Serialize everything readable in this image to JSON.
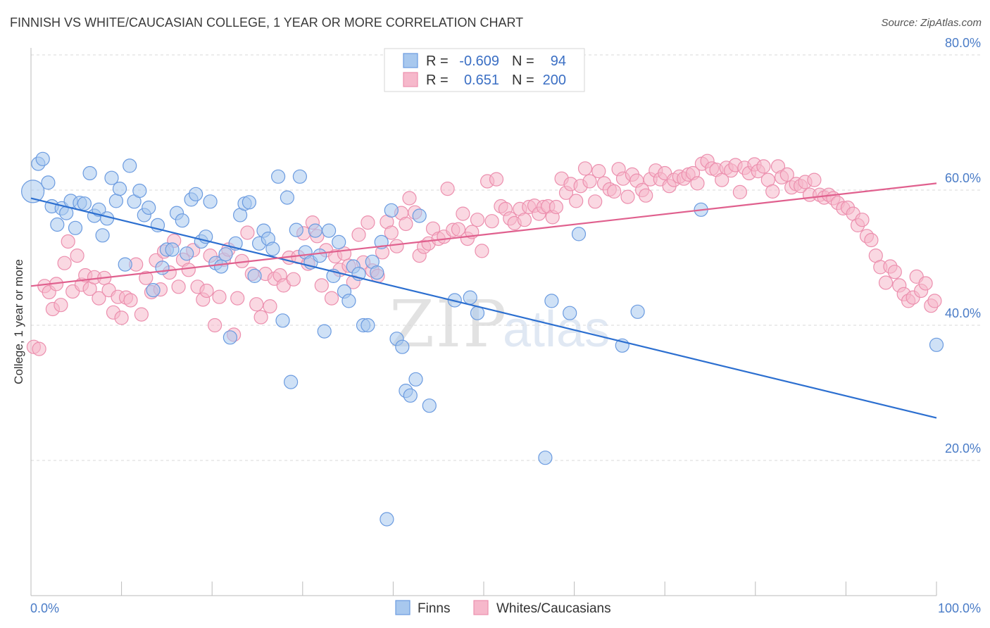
{
  "title": "FINNISH VS WHITE/CAUCASIAN COLLEGE, 1 YEAR OR MORE CORRELATION CHART",
  "source": "Source: ZipAtlas.com",
  "watermark": {
    "zip": "ZIP",
    "atlas": "atlas"
  },
  "colors": {
    "finns_fill": "#a8c8ee",
    "finns_stroke": "#6b9be0",
    "finns_line": "#2c6fd0",
    "whites_fill": "#f6b8cb",
    "whites_stroke": "#ec8fae",
    "whites_line": "#e0608e",
    "grid": "#d8d8d8",
    "tick": "#4a7cc7"
  },
  "legend": {
    "rows": [
      {
        "r_label": "R =",
        "r_value": "-0.609",
        "n_label": "N =",
        "n_value": "94"
      },
      {
        "r_label": "R =",
        "r_value": "0.651",
        "n_label": "N =",
        "n_value": "200"
      }
    ]
  },
  "bottom_legend": {
    "finns": "Finns",
    "whites": "Whites/Caucasians"
  },
  "chart_data": {
    "type": "scatter",
    "xlabel": "",
    "ylabel": "College, 1 year or more",
    "xlim": [
      0,
      100
    ],
    "ylim": [
      0,
      82
    ],
    "x_tick_labels": [
      "0.0%",
      "100.0%"
    ],
    "y_ticks": [
      20,
      40,
      60,
      80
    ],
    "y_tick_labels": [
      "20.0%",
      "40.0%",
      "60.0%",
      "80.0%"
    ],
    "grid": true,
    "legend_position": "top-center",
    "series": [
      {
        "name": "Finns",
        "r": -0.609,
        "n": 94,
        "trend": {
          "x": [
            0,
            100
          ],
          "y": [
            58.8,
            26.3
          ]
        },
        "points": [
          [
            0.2,
            59.8
          ],
          [
            0.8,
            63.9
          ],
          [
            1.3,
            64.6
          ],
          [
            1.9,
            61.1
          ],
          [
            2.3,
            57.6
          ],
          [
            2.9,
            54.9
          ],
          [
            3.4,
            57.3
          ],
          [
            3.9,
            56.6
          ],
          [
            4.4,
            58.4
          ],
          [
            4.9,
            54.4
          ],
          [
            5.4,
            58.1
          ],
          [
            5.9,
            58.0
          ],
          [
            6.5,
            62.5
          ],
          [
            7.0,
            56.2
          ],
          [
            7.5,
            57.1
          ],
          [
            7.9,
            53.3
          ],
          [
            8.4,
            55.8
          ],
          [
            8.9,
            61.8
          ],
          [
            9.4,
            58.4
          ],
          [
            9.8,
            60.2
          ],
          [
            10.4,
            49.0
          ],
          [
            10.9,
            63.6
          ],
          [
            11.4,
            58.3
          ],
          [
            12.0,
            59.9
          ],
          [
            12.5,
            56.3
          ],
          [
            13.0,
            57.4
          ],
          [
            13.5,
            45.2
          ],
          [
            14.0,
            54.8
          ],
          [
            14.5,
            48.5
          ],
          [
            15.0,
            51.2
          ],
          [
            15.6,
            51.2
          ],
          [
            16.1,
            56.6
          ],
          [
            16.7,
            55.5
          ],
          [
            17.2,
            50.6
          ],
          [
            17.7,
            58.6
          ],
          [
            18.2,
            59.4
          ],
          [
            18.8,
            52.4
          ],
          [
            19.3,
            53.1
          ],
          [
            19.8,
            58.3
          ],
          [
            20.4,
            49.2
          ],
          [
            21.0,
            48.7
          ],
          [
            21.5,
            50.5
          ],
          [
            22.0,
            38.2
          ],
          [
            22.6,
            52.1
          ],
          [
            23.1,
            56.3
          ],
          [
            23.6,
            58.0
          ],
          [
            24.1,
            58.2
          ],
          [
            24.7,
            47.3
          ],
          [
            25.2,
            52.1
          ],
          [
            25.7,
            54.0
          ],
          [
            26.2,
            52.8
          ],
          [
            26.7,
            51.3
          ],
          [
            27.3,
            62.0
          ],
          [
            27.8,
            40.7
          ],
          [
            28.3,
            58.9
          ],
          [
            28.7,
            31.6
          ],
          [
            29.3,
            54.1
          ],
          [
            29.7,
            62.0
          ],
          [
            30.3,
            50.8
          ],
          [
            30.9,
            49.3
          ],
          [
            31.4,
            54.0
          ],
          [
            31.9,
            50.3
          ],
          [
            32.4,
            39.1
          ],
          [
            32.9,
            54.0
          ],
          [
            33.4,
            47.3
          ],
          [
            34.0,
            52.3
          ],
          [
            34.6,
            45.0
          ],
          [
            35.1,
            43.6
          ],
          [
            35.6,
            48.7
          ],
          [
            36.2,
            47.6
          ],
          [
            36.7,
            40.0
          ],
          [
            37.2,
            40.0
          ],
          [
            37.7,
            49.4
          ],
          [
            38.2,
            47.8
          ],
          [
            38.7,
            52.3
          ],
          [
            39.3,
            11.3
          ],
          [
            39.8,
            57.0
          ],
          [
            40.4,
            38.0
          ],
          [
            41.0,
            36.8
          ],
          [
            41.4,
            30.3
          ],
          [
            41.9,
            29.6
          ],
          [
            42.5,
            32.0
          ],
          [
            42.9,
            56.2
          ],
          [
            44.0,
            28.1
          ],
          [
            46.8,
            43.7
          ],
          [
            48.5,
            44.1
          ],
          [
            49.3,
            41.8
          ],
          [
            56.8,
            20.4
          ],
          [
            57.5,
            43.6
          ],
          [
            59.5,
            41.8
          ],
          [
            60.5,
            53.5
          ],
          [
            65.3,
            37.0
          ],
          [
            67.0,
            42.0
          ],
          [
            74.0,
            57.1
          ],
          [
            100.0,
            37.1
          ]
        ]
      },
      {
        "name": "Whites/Caucasians",
        "r": 0.651,
        "n": 200,
        "trend": {
          "x": [
            0,
            100
          ],
          "y": [
            45.8,
            61.0
          ]
        },
        "points": [
          [
            0.3,
            36.8
          ],
          [
            0.9,
            36.5
          ],
          [
            1.5,
            45.8
          ],
          [
            2.0,
            44.9
          ],
          [
            2.4,
            42.4
          ],
          [
            2.8,
            46.1
          ],
          [
            3.3,
            43.0
          ],
          [
            3.7,
            49.2
          ],
          [
            4.1,
            52.4
          ],
          [
            4.6,
            45.0
          ],
          [
            5.1,
            50.3
          ],
          [
            5.6,
            46.0
          ],
          [
            6.0,
            47.4
          ],
          [
            6.5,
            45.4
          ],
          [
            7.0,
            47.1
          ],
          [
            7.5,
            44.0
          ],
          [
            8.1,
            47.0
          ],
          [
            8.6,
            45.2
          ],
          [
            9.1,
            41.9
          ],
          [
            9.6,
            44.2
          ],
          [
            10.0,
            41.1
          ],
          [
            10.5,
            44.1
          ],
          [
            11.0,
            43.7
          ],
          [
            11.6,
            49.0
          ],
          [
            12.2,
            41.6
          ],
          [
            12.7,
            47.0
          ],
          [
            13.3,
            44.9
          ],
          [
            13.8,
            49.6
          ],
          [
            14.3,
            45.3
          ],
          [
            14.7,
            50.9
          ],
          [
            15.3,
            47.8
          ],
          [
            15.8,
            52.5
          ],
          [
            16.3,
            45.7
          ],
          [
            16.8,
            49.7
          ],
          [
            17.4,
            48.2
          ],
          [
            17.9,
            51.1
          ],
          [
            18.4,
            45.7
          ],
          [
            19.0,
            43.8
          ],
          [
            19.4,
            45.1
          ],
          [
            19.8,
            50.3
          ],
          [
            20.3,
            40.0
          ],
          [
            20.8,
            44.2
          ],
          [
            21.3,
            49.7
          ],
          [
            21.8,
            51.2
          ],
          [
            22.4,
            38.6
          ],
          [
            22.8,
            44.0
          ],
          [
            23.3,
            49.5
          ],
          [
            23.9,
            53.7
          ],
          [
            24.4,
            47.6
          ],
          [
            24.9,
            43.1
          ],
          [
            25.4,
            41.2
          ],
          [
            25.9,
            47.6
          ],
          [
            26.4,
            42.8
          ],
          [
            26.9,
            46.9
          ],
          [
            27.5,
            47.4
          ],
          [
            27.9,
            45.9
          ],
          [
            28.5,
            50.0
          ],
          [
            29.0,
            46.8
          ],
          [
            29.5,
            50.1
          ],
          [
            30.1,
            53.6
          ],
          [
            30.6,
            49.1
          ],
          [
            31.1,
            55.2
          ],
          [
            31.6,
            53.2
          ],
          [
            32.1,
            45.9
          ],
          [
            32.6,
            51.1
          ],
          [
            33.2,
            44.0
          ],
          [
            33.6,
            50.2
          ],
          [
            34.1,
            48.2
          ],
          [
            34.6,
            50.6
          ],
          [
            35.1,
            48.8
          ],
          [
            35.6,
            46.4
          ],
          [
            36.2,
            53.4
          ],
          [
            36.7,
            49.3
          ],
          [
            37.2,
            55.2
          ],
          [
            37.7,
            48.1
          ],
          [
            38.3,
            47.3
          ],
          [
            38.8,
            50.8
          ],
          [
            39.3,
            55.3
          ],
          [
            39.8,
            53.7
          ],
          [
            40.4,
            51.7
          ],
          [
            40.9,
            56.6
          ],
          [
            41.4,
            55.0
          ],
          [
            41.8,
            58.8
          ],
          [
            42.4,
            56.7
          ],
          [
            42.9,
            50.3
          ],
          [
            43.4,
            51.6
          ],
          [
            43.9,
            52.1
          ],
          [
            44.4,
            54.3
          ],
          [
            45.0,
            52.8
          ],
          [
            45.6,
            53.1
          ],
          [
            46.0,
            60.2
          ],
          [
            46.6,
            54.1
          ],
          [
            47.2,
            54.2
          ],
          [
            47.7,
            56.5
          ],
          [
            48.2,
            52.8
          ],
          [
            48.7,
            53.8
          ],
          [
            49.3,
            55.6
          ],
          [
            49.8,
            51.0
          ],
          [
            50.4,
            61.3
          ],
          [
            50.9,
            55.4
          ],
          [
            51.4,
            61.6
          ],
          [
            51.9,
            57.6
          ],
          [
            52.4,
            57.2
          ],
          [
            52.9,
            55.8
          ],
          [
            53.4,
            55.1
          ],
          [
            54.0,
            57.2
          ],
          [
            54.5,
            55.6
          ],
          [
            55.0,
            57.5
          ],
          [
            55.6,
            57.7
          ],
          [
            56.1,
            56.5
          ],
          [
            56.6,
            57.5
          ],
          [
            57.1,
            57.6
          ],
          [
            57.6,
            56.0
          ],
          [
            58.0,
            57.5
          ],
          [
            58.6,
            61.7
          ],
          [
            59.1,
            59.6
          ],
          [
            59.6,
            60.9
          ],
          [
            60.2,
            58.4
          ],
          [
            60.7,
            60.6
          ],
          [
            61.2,
            63.2
          ],
          [
            61.7,
            61.3
          ],
          [
            62.3,
            58.3
          ],
          [
            62.7,
            62.8
          ],
          [
            63.3,
            61.0
          ],
          [
            63.9,
            60.1
          ],
          [
            64.4,
            59.8
          ],
          [
            64.9,
            63.1
          ],
          [
            65.4,
            61.7
          ],
          [
            65.9,
            59.0
          ],
          [
            66.4,
            62.3
          ],
          [
            66.9,
            61.4
          ],
          [
            67.5,
            60.0
          ],
          [
            67.9,
            59.2
          ],
          [
            68.4,
            61.6
          ],
          [
            69.0,
            62.9
          ],
          [
            69.5,
            61.6
          ],
          [
            70.0,
            62.5
          ],
          [
            70.5,
            60.6
          ],
          [
            71.0,
            61.5
          ],
          [
            71.6,
            62.0
          ],
          [
            72.1,
            61.7
          ],
          [
            72.6,
            62.3
          ],
          [
            73.1,
            62.5
          ],
          [
            73.6,
            61.0
          ],
          [
            74.1,
            63.9
          ],
          [
            74.7,
            64.3
          ],
          [
            75.2,
            63.2
          ],
          [
            75.7,
            63.0
          ],
          [
            76.3,
            61.5
          ],
          [
            76.8,
            63.3
          ],
          [
            77.3,
            62.9
          ],
          [
            77.8,
            63.7
          ],
          [
            78.3,
            59.7
          ],
          [
            78.8,
            63.3
          ],
          [
            79.3,
            62.5
          ],
          [
            79.9,
            63.8
          ],
          [
            80.3,
            62.8
          ],
          [
            80.9,
            63.5
          ],
          [
            81.4,
            61.5
          ],
          [
            81.9,
            59.8
          ],
          [
            82.5,
            63.5
          ],
          [
            82.9,
            61.9
          ],
          [
            83.5,
            62.3
          ],
          [
            84.0,
            60.4
          ],
          [
            84.5,
            60.9
          ],
          [
            85.0,
            60.6
          ],
          [
            85.5,
            61.2
          ],
          [
            86.0,
            59.3
          ],
          [
            86.5,
            61.5
          ],
          [
            87.1,
            59.3
          ],
          [
            87.6,
            58.9
          ],
          [
            88.1,
            59.3
          ],
          [
            88.6,
            58.8
          ],
          [
            89.1,
            58.1
          ],
          [
            89.7,
            57.3
          ],
          [
            90.2,
            57.4
          ],
          [
            90.8,
            56.5
          ],
          [
            91.3,
            54.8
          ],
          [
            91.8,
            55.6
          ],
          [
            92.3,
            53.2
          ],
          [
            92.8,
            52.6
          ],
          [
            93.3,
            50.3
          ],
          [
            93.8,
            48.6
          ],
          [
            94.4,
            46.3
          ],
          [
            94.9,
            48.7
          ],
          [
            95.4,
            47.9
          ],
          [
            95.9,
            45.9
          ],
          [
            96.4,
            44.6
          ],
          [
            96.9,
            43.6
          ],
          [
            97.4,
            44.1
          ],
          [
            97.8,
            47.2
          ],
          [
            98.3,
            45.1
          ],
          [
            98.8,
            46.2
          ],
          [
            99.4,
            42.9
          ],
          [
            99.8,
            43.6
          ]
        ]
      }
    ]
  }
}
